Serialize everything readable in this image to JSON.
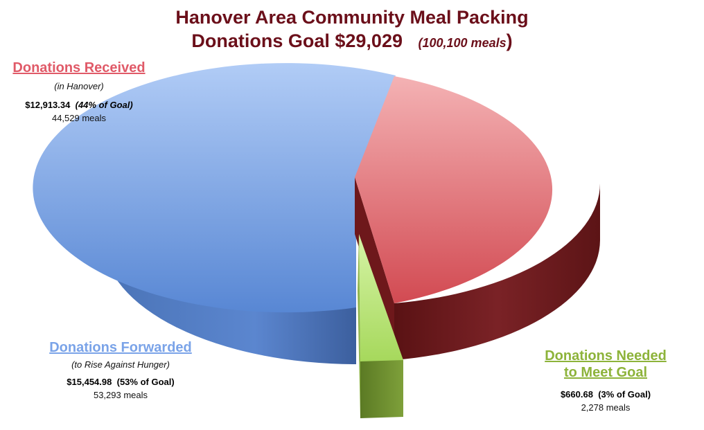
{
  "title": {
    "line1": "Hanover Area Community Meal Packing",
    "line2_main": "Donations Goal $29,029",
    "line2_meals": "(100,100 meals",
    "line2_close": ")"
  },
  "labels": {
    "received": {
      "heading": "Donations Received",
      "sub": "(in Hanover)",
      "amount": "$12,913.34",
      "pct": "(44% of Goal)",
      "meals": "44,529 meals"
    },
    "forwarded": {
      "heading": "Donations Forwarded",
      "sub": "(to Rise Against Hunger)",
      "amount": "$15,454.98",
      "pct": "(53% of  Goal)",
      "meals": "53,293 meals"
    },
    "needed": {
      "heading_line1": "Donations Needed",
      "heading_line2": "to Meet Goal",
      "amount": "$660.68",
      "pct": "(3% of Goal)",
      "meals": "2,278 meals"
    }
  },
  "chart_data": {
    "type": "pie",
    "title": "Hanover Area Community Meal Packing Donations Goal $29,029 (100,100 meals)",
    "goal": 29029,
    "goal_meals": 100100,
    "slices": [
      {
        "name": "Donations Received",
        "value": 12913.34,
        "percent": 44,
        "meals": 44529,
        "color": "#d9545c"
      },
      {
        "name": "Donations Forwarded",
        "value": 15454.98,
        "percent": 53,
        "meals": 53293,
        "color": "#6f9be0"
      },
      {
        "name": "Donations Needed to Meet Goal",
        "value": 660.68,
        "percent": 3,
        "meals": 2278,
        "color": "#b5e06a"
      }
    ],
    "style": "3d-exploded",
    "legend": "none",
    "colors": {
      "received_top": "#f2a9ab",
      "received_bottom": "#d4474f",
      "received_side": "#6d1a1c",
      "forwarded_top": "#a9c7f5",
      "forwarded_bottom": "#5b8bd6",
      "forwarded_side": "#33568f",
      "needed_top": "#c8ef8f",
      "needed_side": "#6a8a2c",
      "title": "#6b0f1a",
      "received_label": "#e05a68",
      "forwarded_label": "#7aa3e8",
      "needed_label": "#8db33a"
    }
  }
}
